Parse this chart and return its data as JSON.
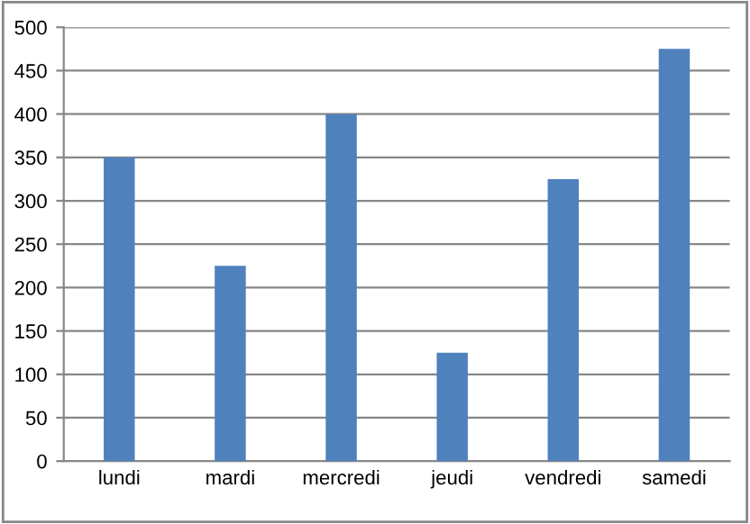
{
  "chart_data": {
    "type": "bar",
    "categories": [
      "lundi",
      "mardi",
      "mercredi",
      "jeudi",
      "vendredi",
      "samedi"
    ],
    "values": [
      350,
      225,
      400,
      125,
      325,
      475
    ],
    "color": "#4f81bd",
    "ylim": [
      0,
      500
    ],
    "yticks": [
      0,
      50,
      100,
      150,
      200,
      250,
      300,
      350,
      400,
      450,
      500
    ],
    "grid": "y",
    "legend": false
  }
}
